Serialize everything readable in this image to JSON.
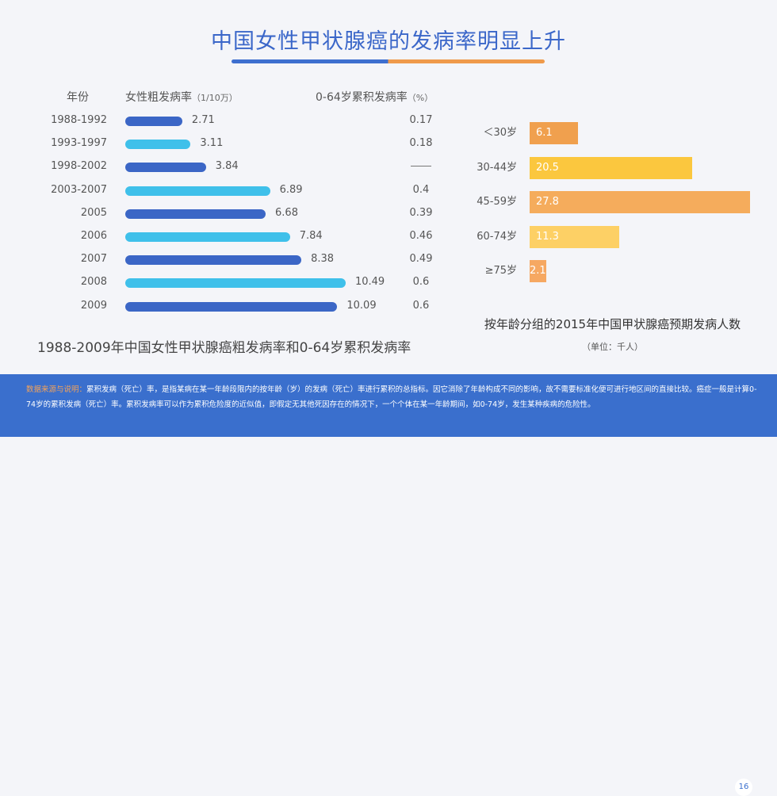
{
  "title": "中国女性甲状腺癌的发病率明显上升",
  "headers": {
    "year": "年份",
    "rate_main": "女性粗发病率",
    "rate_unit": "（1/10万）",
    "cum_main": "0-64岁累积发病率",
    "cum_unit": "（%）"
  },
  "left_caption": "1988-2009年中国女性甲状腺癌粗发病率和0-64岁累积发病率",
  "right_caption": "按年龄分组的2015年中国甲状腺癌预期发病人数",
  "right_sub": "（单位：千人）",
  "footer": {
    "source_label": "数据来源与说明：",
    "text": "累积发病（死亡）率，是指某病在某一年龄段限内的按年龄（岁）的发病（死亡）率进行累积的总指标。因它消除了年龄构成不同的影响，故不需要标准化便可进行地区间的直接比较。癌症一般是计算0-74岁的累积发病（死亡）率。累积发病率可以作为累积危险度的近似值，即假定无其他死因存在的情况下，一个个体在某一年龄期间，如0-74岁，发生某种疾病的危险性。",
    "page": "16"
  },
  "chart_data": [
    {
      "type": "bar",
      "orientation": "horizontal",
      "categories": [
        "1988-1992",
        "1993-1997",
        "1998-2002",
        "2003-2007",
        "2005",
        "2006",
        "2007",
        "2008",
        "2009"
      ],
      "series": [
        {
          "name": "女性粗发病率（1/10万）",
          "values": [
            2.71,
            3.11,
            3.84,
            6.89,
            6.68,
            7.84,
            8.38,
            10.49,
            10.09
          ]
        },
        {
          "name": "0-64岁累积发病率（%）",
          "values": [
            "0.17",
            "0.18",
            "——",
            "0.4",
            "0.39",
            "0.46",
            "0.49",
            "0.6",
            "0.6"
          ]
        }
      ],
      "colors": [
        "#3b66c6",
        "#3fc0ea",
        "#3b66c6",
        "#3fc0ea",
        "#3b66c6",
        "#3fc0ea",
        "#3b66c6",
        "#3fc0ea",
        "#3b66c6"
      ],
      "xlim": [
        0,
        11.5
      ]
    },
    {
      "type": "bar",
      "orientation": "horizontal",
      "categories": [
        "＜30岁",
        "30-44岁",
        "45-59岁",
        "60-74岁",
        "≥75岁"
      ],
      "values": [
        6.1,
        20.5,
        27.8,
        11.3,
        2.1
      ],
      "value_labels": [
        "6.1",
        "20.5",
        "27.8",
        "11.3",
        "2.1"
      ],
      "colors": [
        "#f0a04e",
        "#fbc73e",
        "#f5ac5c",
        "#fdd065",
        "#f6a862"
      ],
      "xlim": [
        0,
        27.8
      ]
    }
  ]
}
